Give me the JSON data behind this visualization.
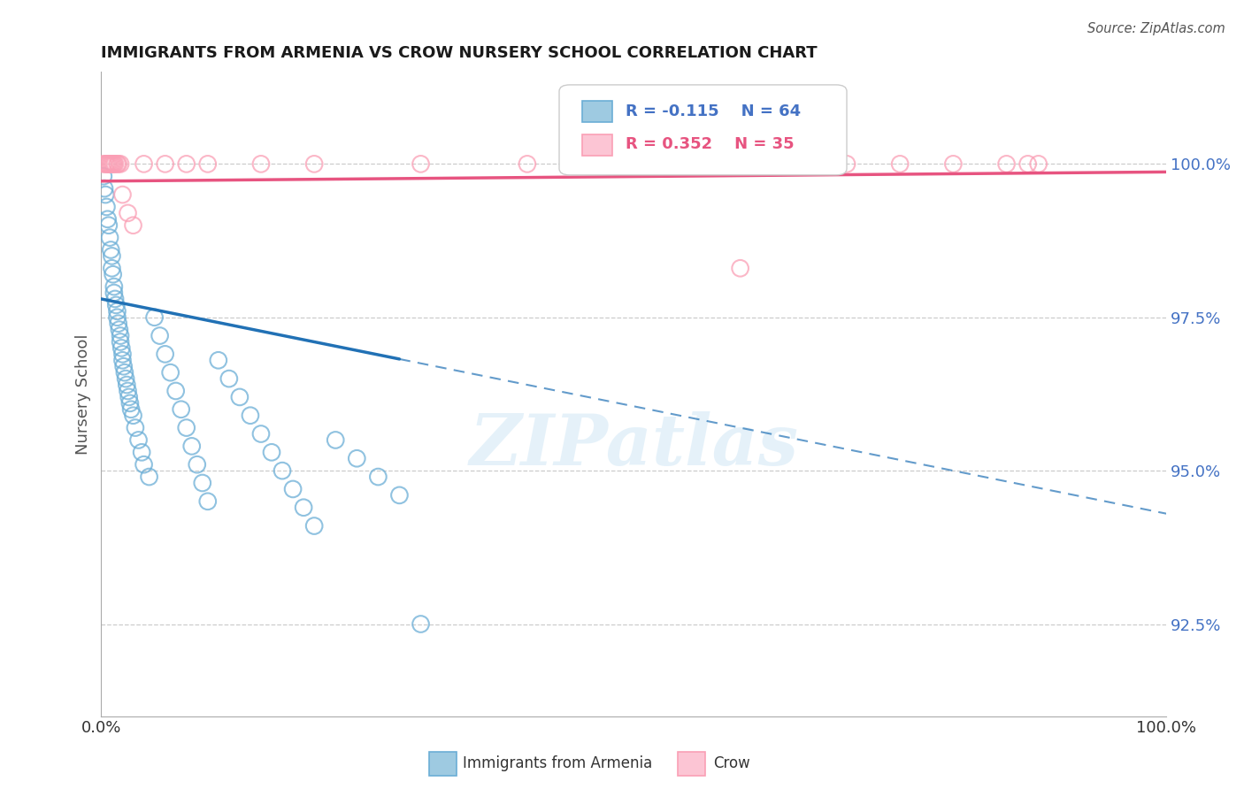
{
  "title": "IMMIGRANTS FROM ARMENIA VS CROW NURSERY SCHOOL CORRELATION CHART",
  "source": "Source: ZipAtlas.com",
  "ylabel": "Nursery School",
  "R_blue": -0.115,
  "N_blue": 64,
  "R_pink": 0.352,
  "N_pink": 35,
  "yticks": [
    92.5,
    95.0,
    97.5,
    100.0
  ],
  "ytick_labels": [
    "92.5%",
    "95.0%",
    "97.5%",
    "100.0%"
  ],
  "xlim": [
    0.0,
    1.0
  ],
  "ylim": [
    91.0,
    101.5
  ],
  "color_blue": "#6baed6",
  "color_pink": "#fa9fb5",
  "color_trendline_blue": "#2171b5",
  "color_trendline_pink": "#e75480",
  "watermark_text": "ZIPatlas",
  "legend_label_blue": "Immigrants from Armenia",
  "legend_label_pink": "Crow",
  "blue_x": [
    0.002,
    0.003,
    0.004,
    0.005,
    0.006,
    0.007,
    0.008,
    0.009,
    0.01,
    0.01,
    0.011,
    0.012,
    0.012,
    0.013,
    0.014,
    0.015,
    0.015,
    0.016,
    0.017,
    0.018,
    0.018,
    0.019,
    0.02,
    0.02,
    0.021,
    0.022,
    0.023,
    0.024,
    0.025,
    0.026,
    0.027,
    0.028,
    0.03,
    0.032,
    0.035,
    0.038,
    0.04,
    0.045,
    0.05,
    0.055,
    0.06,
    0.065,
    0.07,
    0.075,
    0.08,
    0.085,
    0.09,
    0.095,
    0.1,
    0.11,
    0.12,
    0.13,
    0.14,
    0.15,
    0.16,
    0.17,
    0.18,
    0.19,
    0.2,
    0.22,
    0.24,
    0.26,
    0.28,
    0.3
  ],
  "blue_y": [
    99.8,
    99.6,
    99.5,
    99.3,
    99.1,
    99.0,
    98.8,
    98.6,
    98.5,
    98.3,
    98.2,
    98.0,
    97.9,
    97.8,
    97.7,
    97.6,
    97.5,
    97.4,
    97.3,
    97.2,
    97.1,
    97.0,
    96.9,
    96.8,
    96.7,
    96.6,
    96.5,
    96.4,
    96.3,
    96.2,
    96.1,
    96.0,
    95.9,
    95.7,
    95.5,
    95.3,
    95.1,
    94.9,
    97.5,
    97.2,
    96.9,
    96.6,
    96.3,
    96.0,
    95.7,
    95.4,
    95.1,
    94.8,
    94.5,
    96.8,
    96.5,
    96.2,
    95.9,
    95.6,
    95.3,
    95.0,
    94.7,
    94.4,
    94.1,
    95.5,
    95.2,
    94.9,
    94.6,
    92.5
  ],
  "pink_x": [
    0.002,
    0.004,
    0.005,
    0.006,
    0.007,
    0.008,
    0.009,
    0.01,
    0.011,
    0.012,
    0.013,
    0.015,
    0.016,
    0.018,
    0.02,
    0.025,
    0.03,
    0.04,
    0.06,
    0.08,
    0.1,
    0.15,
    0.2,
    0.3,
    0.4,
    0.5,
    0.6,
    0.65,
    0.7,
    0.75,
    0.8,
    0.85,
    0.87,
    0.88,
    0.6
  ],
  "pink_y": [
    100.0,
    100.0,
    100.0,
    100.0,
    100.0,
    100.0,
    100.0,
    100.0,
    100.0,
    100.0,
    100.0,
    100.0,
    100.0,
    100.0,
    99.5,
    99.2,
    99.0,
    100.0,
    100.0,
    100.0,
    100.0,
    100.0,
    100.0,
    100.0,
    100.0,
    100.0,
    100.0,
    100.0,
    100.0,
    100.0,
    100.0,
    100.0,
    100.0,
    100.0,
    98.3
  ]
}
